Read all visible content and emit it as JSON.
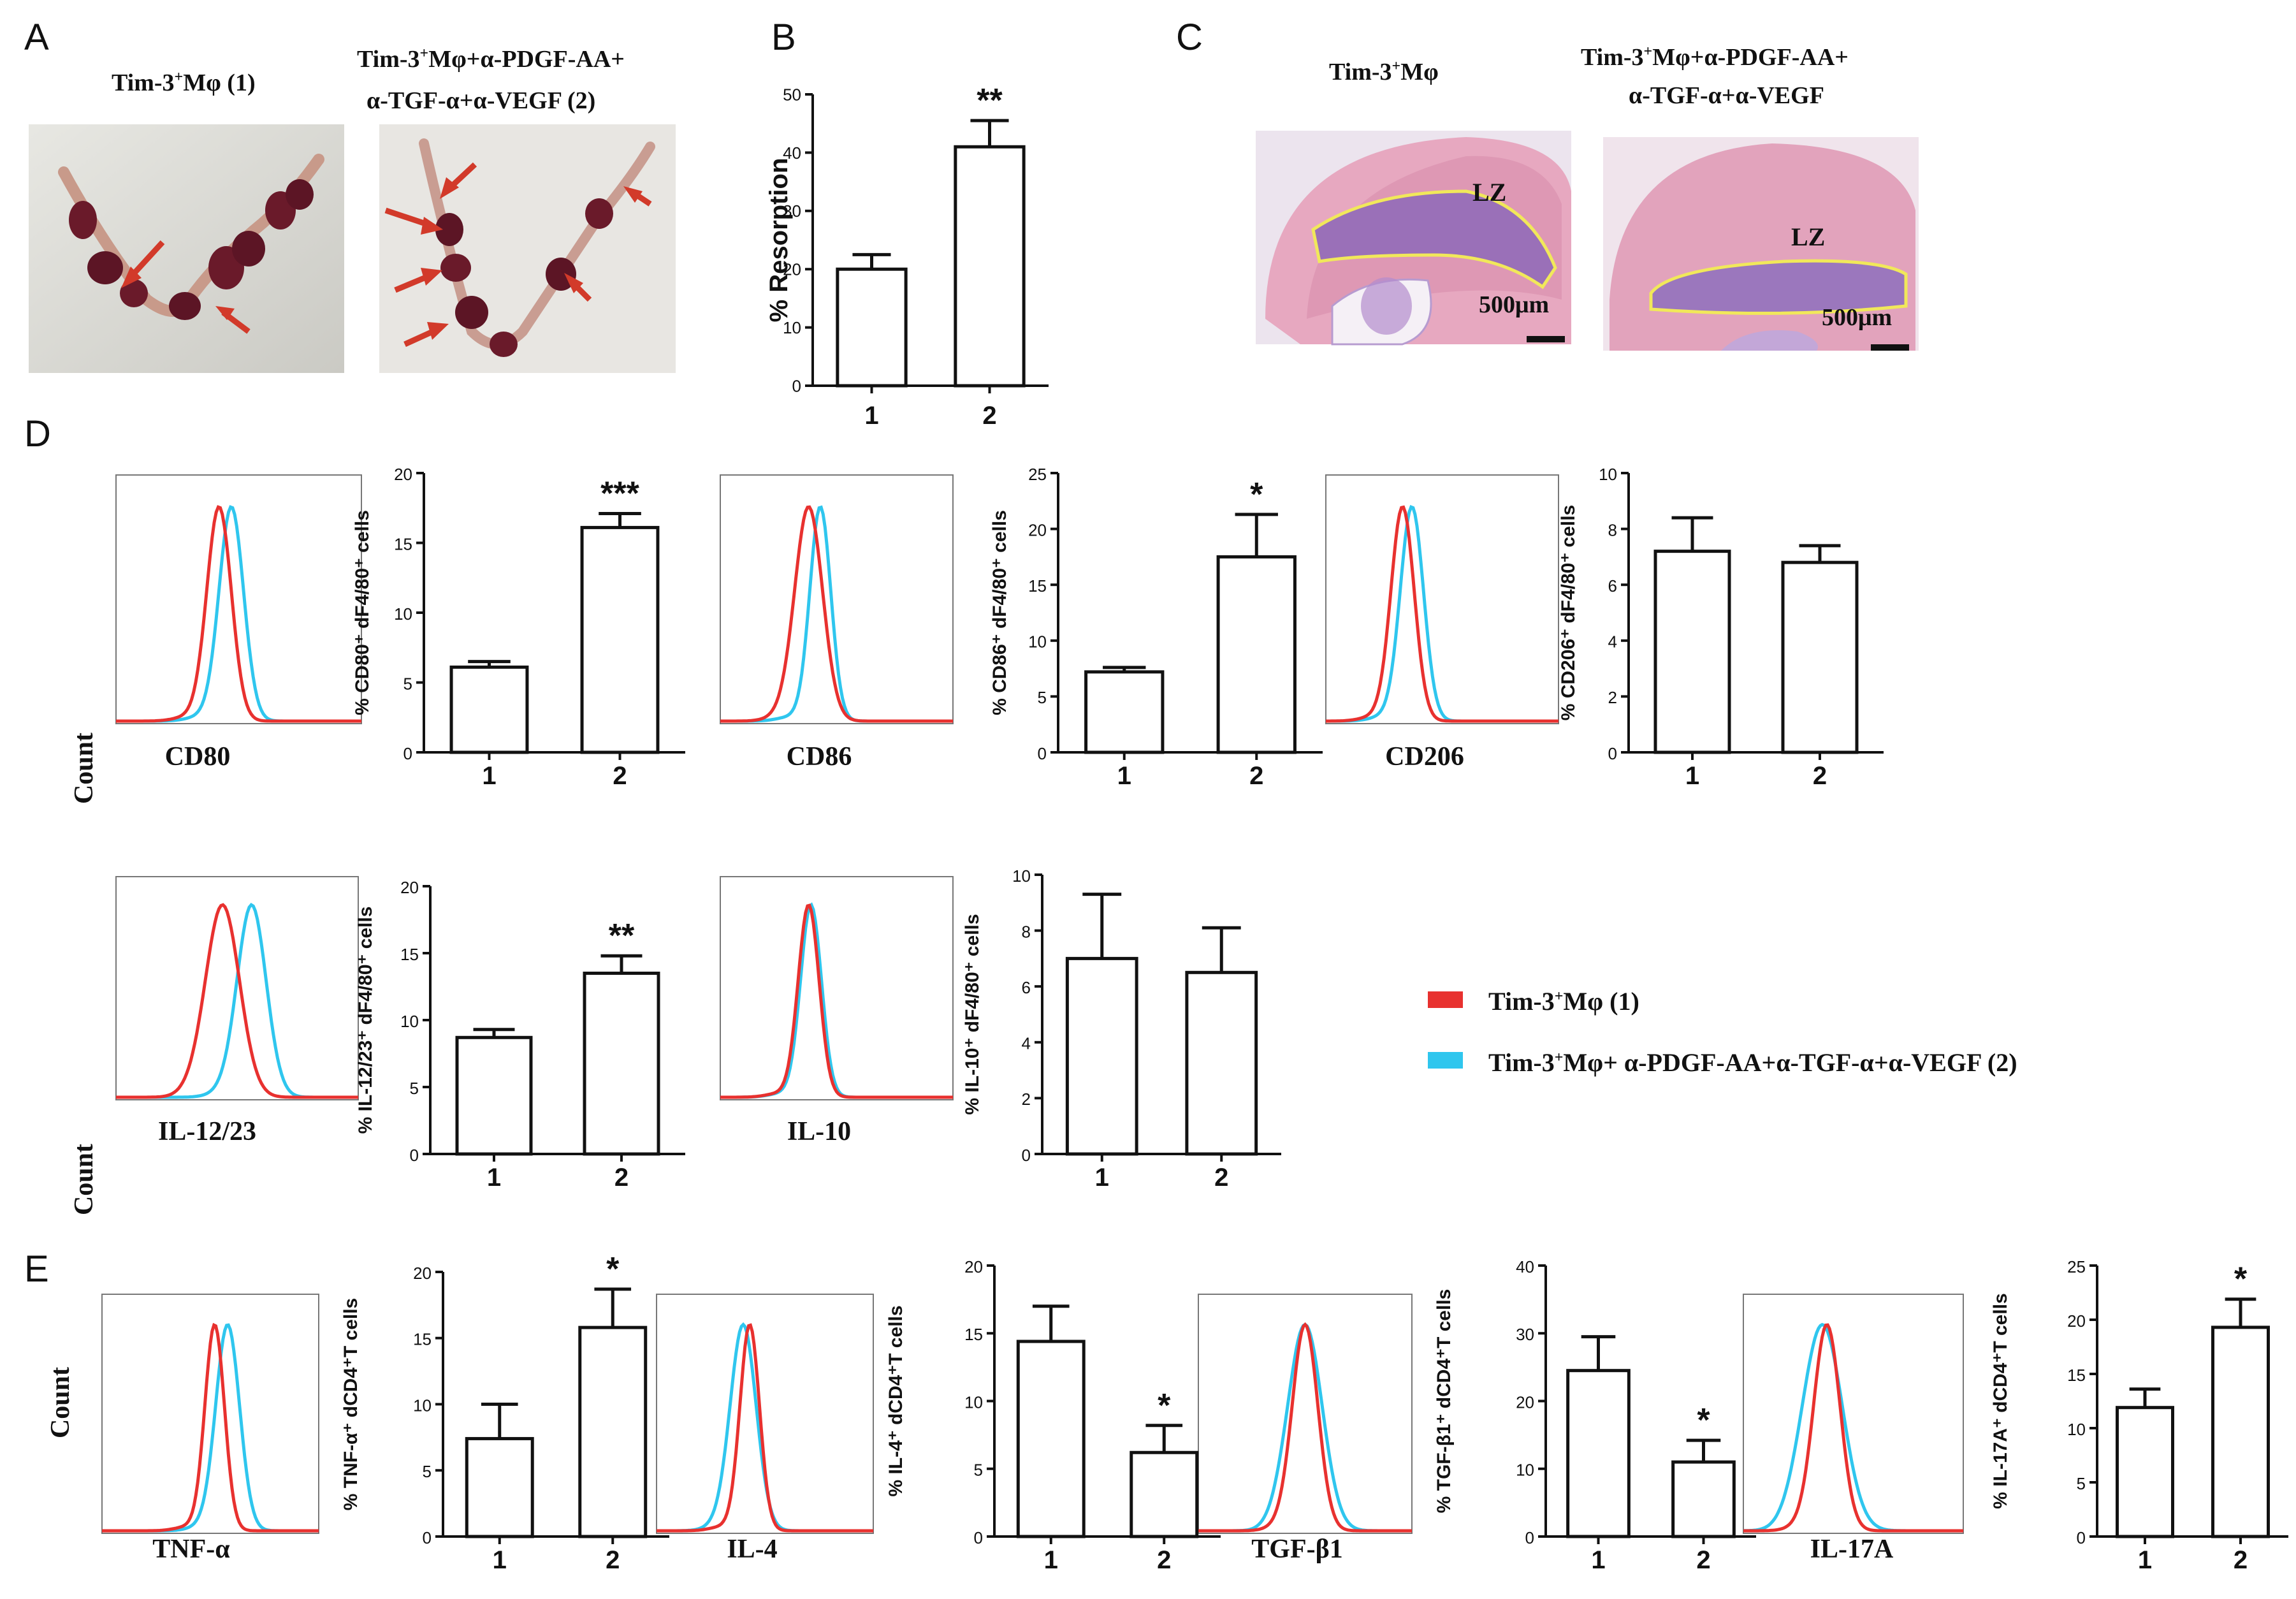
{
  "figure": {
    "panels": {
      "A": "A",
      "B": "B",
      "C": "C",
      "D": "D",
      "E": "E"
    },
    "panel_a": {
      "label1_pre": "Tim-3",
      "label1_sup": "+",
      "label1_post": "Mφ  (1)",
      "label2_line1_pre": "Tim-3",
      "label2_line1_sup": "+",
      "label2_line1_post": "Mφ+α-PDGF-AA+",
      "label2_line2": "α-TGF-α+α-VEGF  (2)"
    },
    "panel_c": {
      "title1_pre": "Tim-3",
      "title1_sup": "+",
      "title1_post": "Mφ",
      "title2_line1_pre": "Tim-3",
      "title2_line1_sup": "+",
      "title2_line1_post": "Mφ+α-PDGF-AA+",
      "title2_line2": "α-TGF-α+α-VEGF",
      "lz": "LZ",
      "scale": "500μm"
    },
    "histogram_ylabel": "Count",
    "legend": {
      "item1_pre": "Tim-3",
      "item1_sup": "+",
      "item1_post": "Mφ  (1)",
      "item2_pre": "Tim-3",
      "item2_sup": "+",
      "item2_post": "Mφ+  α-PDGF-AA+α-TGF-α+α-VEGF  (2)",
      "color1": "#e8312f",
      "color2": "#2fc6ee"
    },
    "histogram_labels": {
      "cd80": "CD80",
      "cd86": "CD86",
      "cd206": "CD206",
      "il1223": "IL-12/23",
      "il10": "IL-10",
      "tnf": "TNF-α",
      "il4": "IL-4",
      "tgf": "TGF-β1",
      "il17": "IL-17A"
    }
  },
  "chart_data": [
    {
      "id": "B",
      "type": "bar",
      "categories": [
        "1",
        "2"
      ],
      "values": [
        20,
        41
      ],
      "errors": [
        2.5,
        4.5
      ],
      "ylim": [
        0,
        50
      ],
      "yticks": [
        0,
        10,
        20,
        30,
        40,
        50
      ],
      "ylabel": "% Resorption",
      "significance": "**"
    },
    {
      "id": "D-CD80",
      "type": "bar",
      "categories": [
        "1",
        "2"
      ],
      "values": [
        6.1,
        16.1
      ],
      "errors": [
        0.4,
        1.0
      ],
      "ylim": [
        0,
        20
      ],
      "yticks": [
        0,
        5,
        10,
        15,
        20
      ],
      "ylabel": "% CD80⁺ dF4/80⁺ cells",
      "significance": "***"
    },
    {
      "id": "D-CD86",
      "type": "bar",
      "categories": [
        "1",
        "2"
      ],
      "values": [
        7.2,
        17.5
      ],
      "errors": [
        0.4,
        3.8
      ],
      "ylim": [
        0,
        25
      ],
      "yticks": [
        0,
        5,
        10,
        15,
        20,
        25
      ],
      "ylabel": "% CD86⁺ dF4/80⁺ cells",
      "significance": "*"
    },
    {
      "id": "D-CD206",
      "type": "bar",
      "categories": [
        "1",
        "2"
      ],
      "values": [
        7.2,
        6.8
      ],
      "errors": [
        1.2,
        0.6
      ],
      "ylim": [
        0,
        10
      ],
      "yticks": [
        0,
        2,
        4,
        6,
        8,
        10
      ],
      "ylabel": "% CD206⁺ dF4/80⁺ cells",
      "significance": ""
    },
    {
      "id": "D-IL1223",
      "type": "bar",
      "categories": [
        "1",
        "2"
      ],
      "values": [
        8.7,
        13.5
      ],
      "errors": [
        0.6,
        1.3
      ],
      "ylim": [
        0,
        20
      ],
      "yticks": [
        0,
        5,
        10,
        15,
        20
      ],
      "ylabel": "% IL-12/23⁺ dF4/80⁺ cells",
      "significance": "**"
    },
    {
      "id": "D-IL10",
      "type": "bar",
      "categories": [
        "1",
        "2"
      ],
      "values": [
        7.0,
        6.5
      ],
      "errors": [
        2.3,
        1.6
      ],
      "ylim": [
        0,
        10
      ],
      "yticks": [
        0,
        2,
        4,
        6,
        8,
        10
      ],
      "ylabel": "% IL-10⁺ dF4/80⁺ cells",
      "significance": ""
    },
    {
      "id": "E-TNF",
      "type": "bar",
      "categories": [
        "1",
        "2"
      ],
      "values": [
        7.4,
        15.8
      ],
      "errors": [
        2.6,
        2.9
      ],
      "ylim": [
        0,
        20
      ],
      "yticks": [
        0,
        5,
        10,
        15,
        20
      ],
      "ylabel": "% TNF-α⁺ dCD4⁺T cells",
      "significance": "*"
    },
    {
      "id": "E-IL4",
      "type": "bar",
      "categories": [
        "1",
        "2"
      ],
      "values": [
        14.4,
        6.2
      ],
      "errors": [
        2.6,
        2.0
      ],
      "ylim": [
        0,
        20
      ],
      "yticks": [
        0,
        5,
        10,
        15,
        20
      ],
      "ylabel": "% IL-4⁺ dCD4⁺T cells",
      "significance": "*"
    },
    {
      "id": "E-TGF",
      "type": "bar",
      "categories": [
        "1",
        "2"
      ],
      "values": [
        24.5,
        11.0
      ],
      "errors": [
        5.0,
        3.2
      ],
      "ylim": [
        0,
        40
      ],
      "yticks": [
        0,
        10,
        20,
        30,
        40
      ],
      "ylabel": "% TGF-β1⁺ dCD4⁺T cells",
      "significance": "*"
    },
    {
      "id": "E-IL17",
      "type": "bar",
      "categories": [
        "1",
        "2"
      ],
      "values": [
        11.9,
        19.3
      ],
      "errors": [
        1.7,
        2.6
      ],
      "ylim": [
        0,
        25
      ],
      "yticks": [
        0,
        5,
        10,
        15,
        20,
        25
      ],
      "ylabel": "% IL-17A⁺ dCD4⁺T cells",
      "significance": "*"
    }
  ]
}
